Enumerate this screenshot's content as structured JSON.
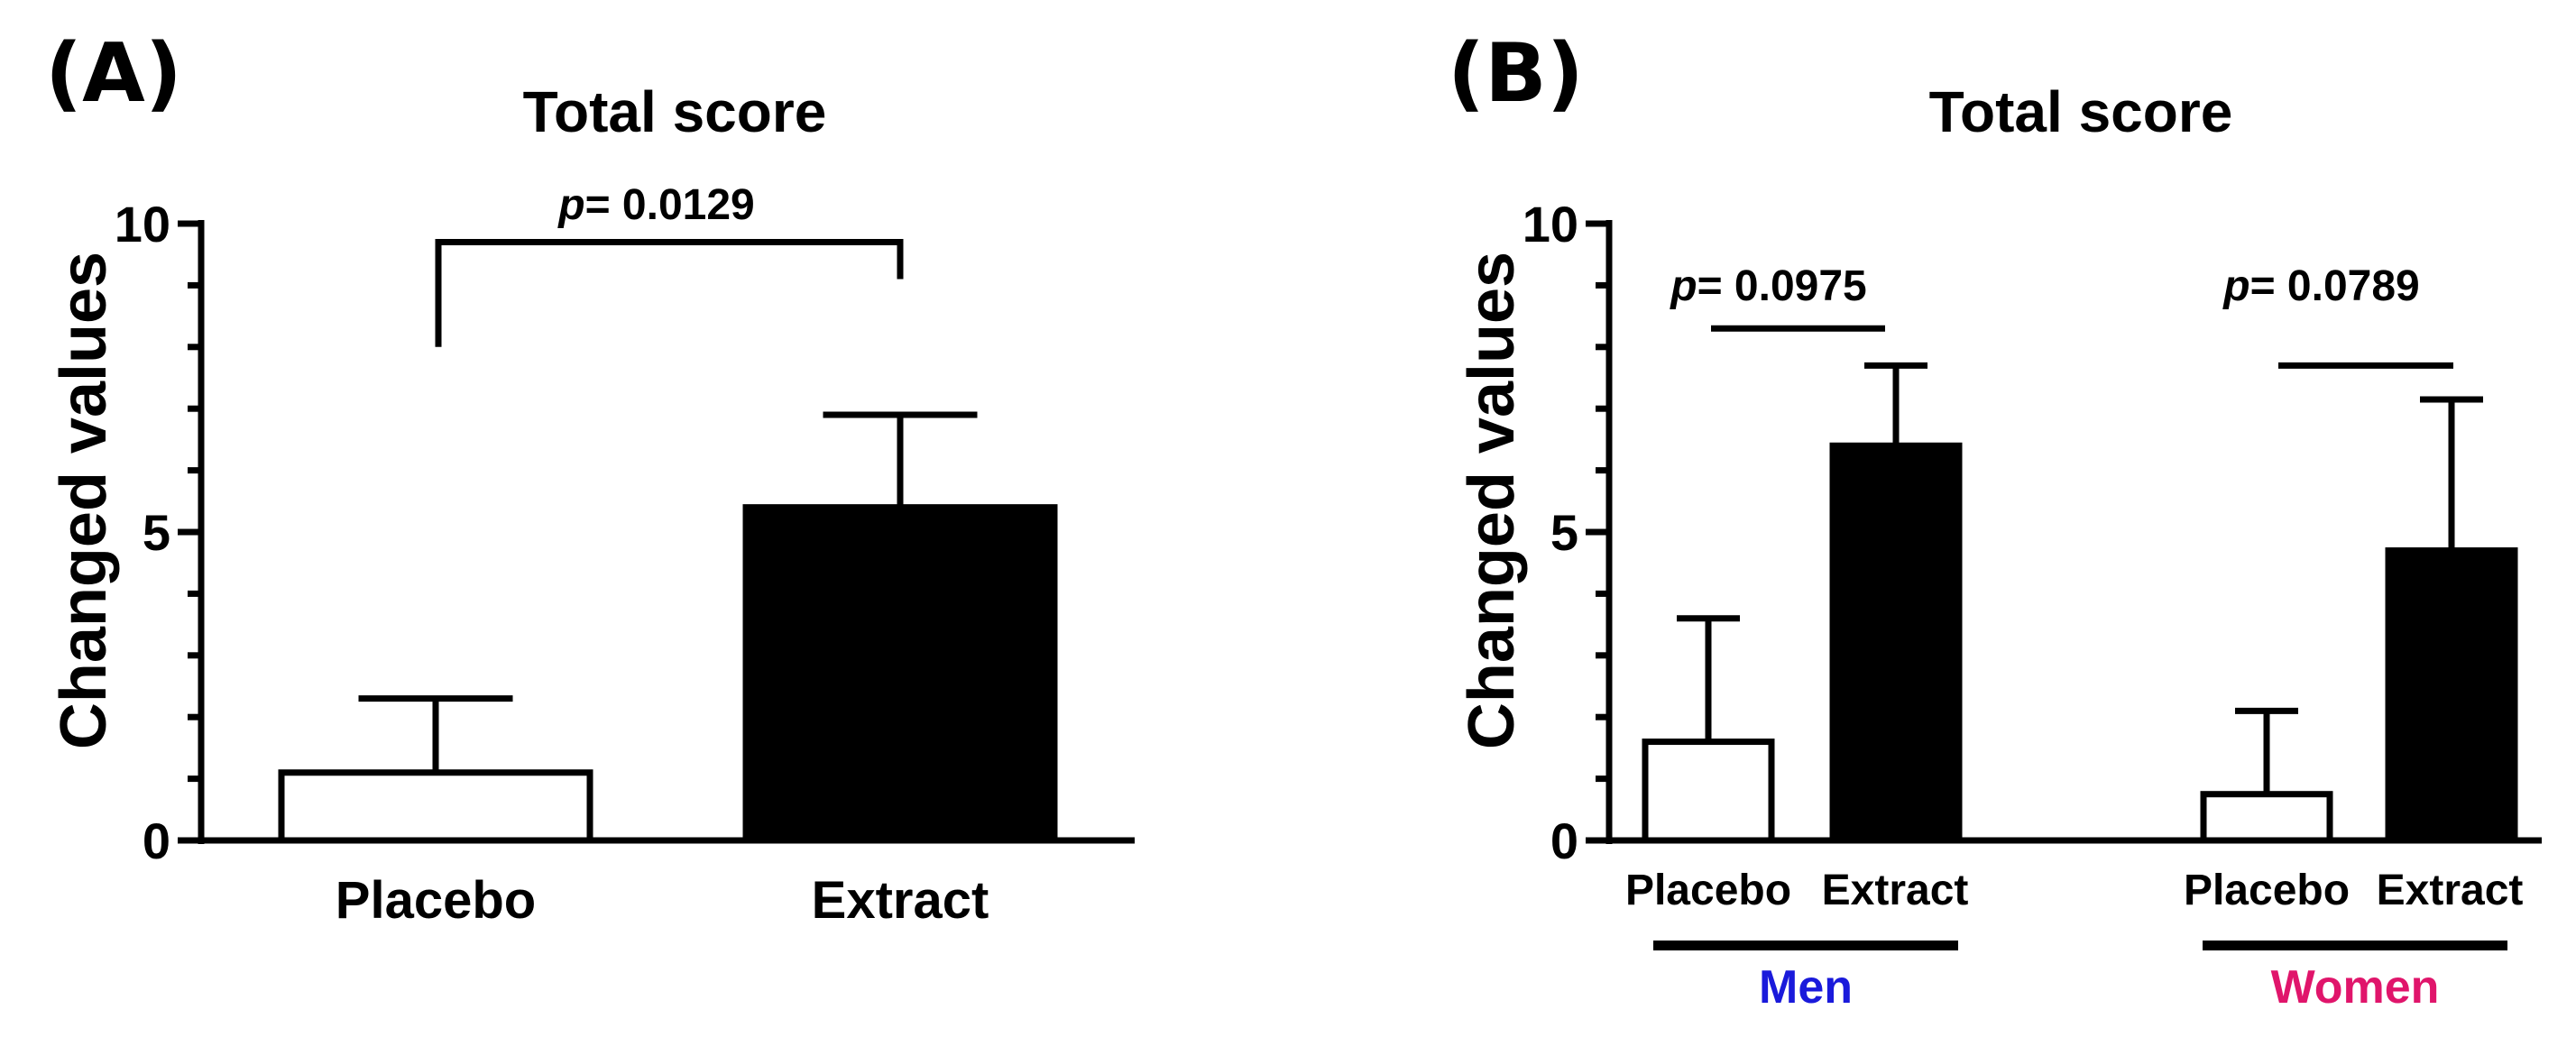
{
  "colors": {
    "men": "#1a1adb",
    "women": "#e0156b",
    "bar_dark": "#000000",
    "bar_light": "#ffffff"
  },
  "chart_data": [
    {
      "id": "A",
      "panel_label": "(A)",
      "type": "bar",
      "title": "Total score",
      "ylabel": "Changed values",
      "xlabel": "",
      "ylim": [
        0,
        10
      ],
      "yticks": [
        0,
        5,
        10
      ],
      "categories": [
        "Placebo",
        "Extract"
      ],
      "values": [
        1.1,
        5.4
      ],
      "errors": [
        1.2,
        1.5
      ],
      "fills": [
        "white",
        "black"
      ],
      "p_annotations": [
        {
          "p_symbol": "p",
          "text": "= 0.0129",
          "between": [
            0,
            1
          ],
          "style": "bracket"
        }
      ]
    },
    {
      "id": "B",
      "panel_label": "(B)",
      "type": "bar",
      "title": "Total score",
      "ylabel": "Changed values",
      "xlabel": "",
      "ylim": [
        0,
        10
      ],
      "yticks": [
        0,
        5,
        10
      ],
      "groups": [
        {
          "name": "Men",
          "color": "#1a1adb",
          "categories": [
            "Placebo",
            "Extract"
          ],
          "values": [
            1.6,
            6.4
          ],
          "errors": [
            2.0,
            1.3
          ],
          "fills": [
            "white",
            "black"
          ],
          "p_annotation": {
            "p_symbol": "p",
            "text": "= 0.0975"
          }
        },
        {
          "name": "Women",
          "color": "#e0156b",
          "categories": [
            "Placebo",
            "Extract"
          ],
          "values": [
            0.75,
            4.7
          ],
          "errors": [
            1.35,
            2.45
          ],
          "fills": [
            "white",
            "black"
          ],
          "p_annotation": {
            "p_symbol": "p",
            "text": "= 0.0789"
          }
        }
      ]
    }
  ]
}
